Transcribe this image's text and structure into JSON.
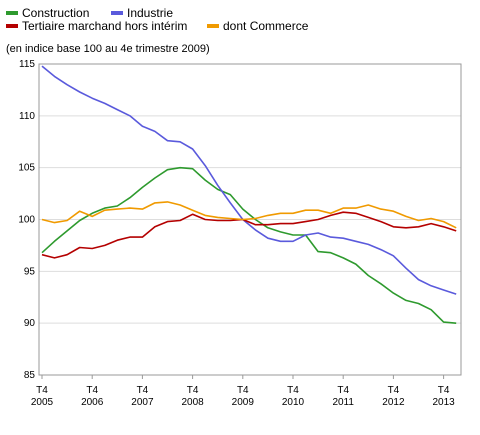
{
  "chart_data": {
    "type": "line",
    "subtitle": "(en indice base 100 au 4e trimestre 2009)",
    "ylim": [
      85,
      115
    ],
    "y_ticks": [
      "85",
      "90",
      "95",
      "100",
      "105",
      "110",
      "115"
    ],
    "grid": "horizontal",
    "legend_position": "top-left",
    "x_tick_top": [
      "T4",
      "T4",
      "T4",
      "T4",
      "T4",
      "T4",
      "T4",
      "T4",
      "T4"
    ],
    "x_tick_bottom": [
      "2005",
      "2006",
      "2007",
      "2008",
      "2009",
      "2010",
      "2011",
      "2012",
      "2013"
    ],
    "x_range": [
      0,
      32.5
    ],
    "series": [
      {
        "name": "Construction",
        "color": "#2e9a2e",
        "values": [
          96.8,
          97.9,
          98.9,
          99.9,
          100.6,
          101.1,
          101.3,
          102.1,
          103.1,
          104.0,
          104.8,
          105.0,
          104.9,
          103.8,
          102.9,
          102.4,
          101.0,
          100.0,
          99.2,
          98.8,
          98.5,
          98.5,
          96.9,
          96.8,
          96.3,
          95.7,
          94.6,
          93.8,
          92.9,
          92.2,
          91.9,
          91.3,
          90.1,
          90.0
        ]
      },
      {
        "name": "Industrie",
        "color": "#5a5adc",
        "values": [
          114.8,
          113.8,
          113.0,
          112.3,
          111.7,
          111.2,
          110.6,
          110.0,
          109.0,
          108.5,
          107.6,
          107.5,
          106.8,
          105.2,
          103.3,
          101.6,
          100.0,
          99.0,
          98.2,
          97.9,
          97.9,
          98.5,
          98.7,
          98.3,
          98.2,
          97.9,
          97.6,
          97.1,
          96.5,
          95.3,
          94.2,
          93.6,
          93.2,
          92.8
        ]
      },
      {
        "name": "Tertiaire marchand hors intérim",
        "color": "#b40000",
        "values": [
          96.6,
          96.3,
          96.6,
          97.3,
          97.2,
          97.5,
          98.0,
          98.3,
          98.3,
          99.3,
          99.8,
          99.9,
          100.5,
          100.0,
          99.9,
          99.9,
          100.0,
          99.5,
          99.5,
          99.6,
          99.6,
          99.8,
          100.0,
          100.4,
          100.7,
          100.6,
          100.2,
          99.8,
          99.3,
          99.2,
          99.3,
          99.6,
          99.3,
          98.9
        ]
      },
      {
        "name": "dont Commerce",
        "color": "#f09a00",
        "values": [
          100.0,
          99.7,
          99.9,
          100.8,
          100.3,
          100.9,
          101.0,
          101.1,
          101.0,
          101.6,
          101.7,
          101.4,
          100.9,
          100.4,
          100.2,
          100.1,
          100.0,
          100.1,
          100.4,
          100.6,
          100.6,
          100.9,
          100.9,
          100.6,
          101.1,
          101.1,
          101.4,
          101.0,
          100.8,
          100.3,
          99.9,
          100.1,
          99.8,
          99.2
        ]
      }
    ]
  }
}
